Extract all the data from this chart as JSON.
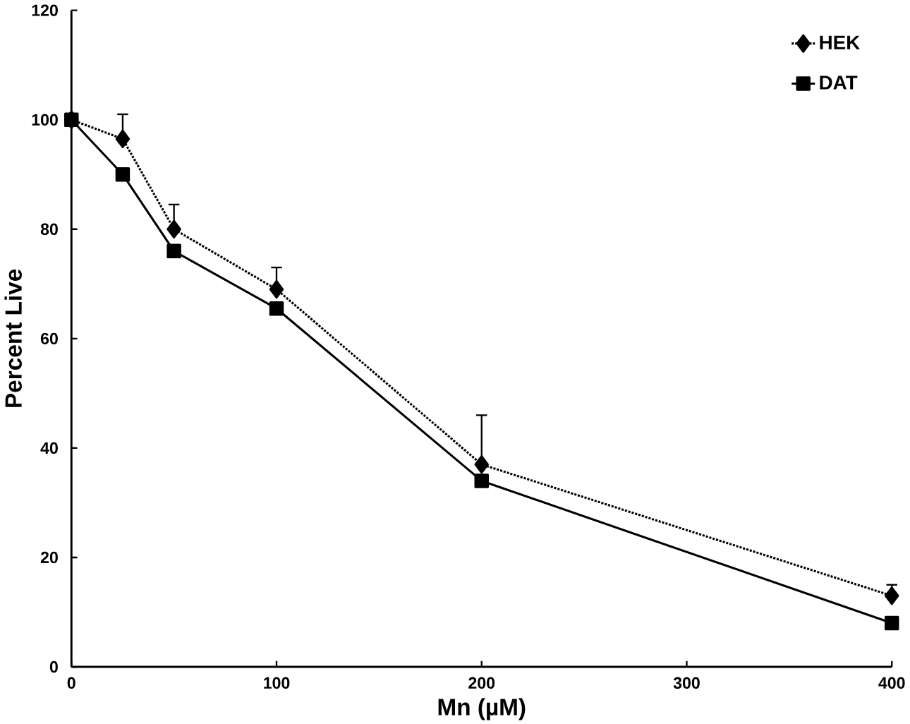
{
  "chart_data": {
    "type": "line",
    "xlabel": "Mn (µM)",
    "ylabel": "Percent Live",
    "x": [
      0,
      25,
      50,
      100,
      200,
      400
    ],
    "series": [
      {
        "name": "HEK",
        "color": "#000000",
        "marker": "diamond",
        "line_style": "dotted",
        "values": [
          100,
          96.5,
          80,
          69,
          37,
          13
        ],
        "errors": [
          null,
          [
            96.5,
            101
          ],
          [
            80,
            84.5
          ],
          [
            69,
            73
          ],
          [
            37,
            46
          ],
          [
            13,
            15
          ]
        ]
      },
      {
        "name": "DAT",
        "color": "#000000",
        "marker": "square",
        "line_style": "solid",
        "values": [
          100,
          90,
          76,
          65.5,
          34,
          8
        ]
      }
    ],
    "xlim": [
      0,
      400
    ],
    "ylim": [
      0,
      120
    ],
    "xticks": [
      0,
      100,
      200,
      300,
      400
    ],
    "yticks": [
      0,
      20,
      40,
      60,
      80,
      100,
      120
    ],
    "grid": false,
    "legend": "top right"
  }
}
